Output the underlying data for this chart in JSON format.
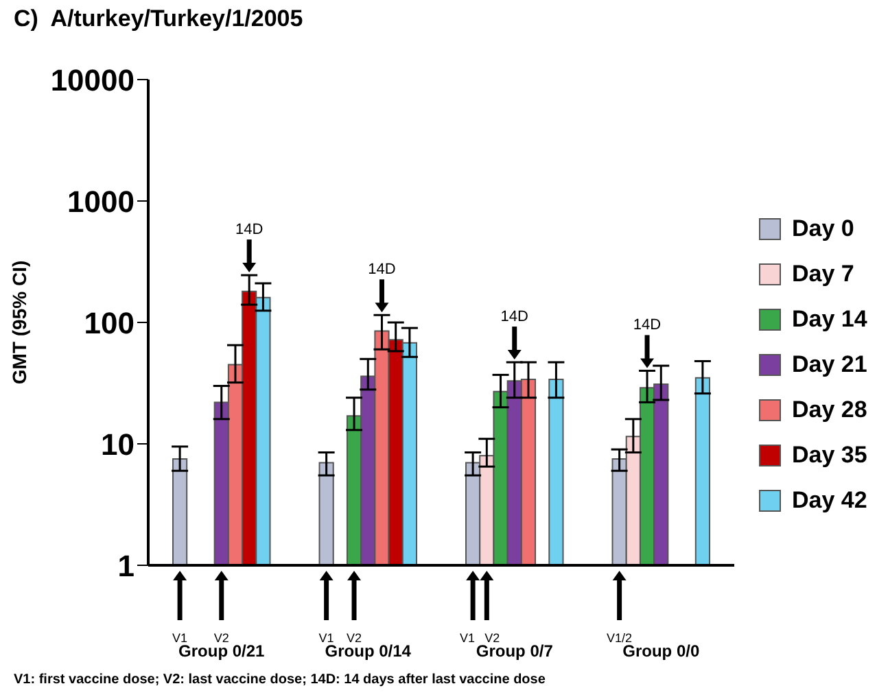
{
  "chart_data": {
    "type": "bar",
    "title": "C)  A/turkey/Turkey/1/2005",
    "ylabel": "GMT (95% CI)",
    "log": "y",
    "ylim": [
      1,
      10000
    ],
    "yticks": [
      1,
      10,
      100,
      1000,
      10000
    ],
    "grid": false,
    "legend": "right",
    "categories": [
      "Group 0/21",
      "Group 0/14",
      "Group 0/7",
      "Group 0/0"
    ],
    "series": [
      {
        "name": "Day 0",
        "color": "#b8bfd4",
        "values": [
          7.5,
          7,
          7,
          7.5
        ],
        "errors": [
          [
            6,
            9.5
          ],
          [
            5.5,
            8.5
          ],
          [
            5.5,
            8.5
          ],
          [
            6,
            9
          ]
        ]
      },
      {
        "name": "Day 7",
        "color": "#f8d4d4",
        "values": [
          null,
          null,
          8,
          11.5
        ],
        "errors": [
          null,
          null,
          [
            6.5,
            11
          ],
          [
            8.5,
            16
          ]
        ]
      },
      {
        "name": "Day 14",
        "color": "#3aa84a",
        "values": [
          null,
          17,
          27,
          29
        ],
        "errors": [
          null,
          [
            13,
            24
          ],
          [
            20,
            37
          ],
          [
            22,
            40
          ]
        ]
      },
      {
        "name": "Day 21",
        "color": "#7b3fa0",
        "values": [
          22,
          36,
          33,
          31
        ],
        "errors": [
          [
            16,
            30
          ],
          [
            28,
            50
          ],
          [
            24,
            47
          ],
          [
            23,
            44
          ]
        ]
      },
      {
        "name": "Day 28",
        "color": "#f07070",
        "values": [
          45,
          85,
          34,
          null
        ],
        "errors": [
          [
            32,
            65
          ],
          [
            60,
            115
          ],
          [
            24,
            47
          ],
          null
        ]
      },
      {
        "name": "Day 35",
        "color": "#c00000",
        "values": [
          180,
          72,
          null,
          null
        ],
        "errors": [
          [
            140,
            245
          ],
          [
            58,
            100
          ],
          null,
          null
        ]
      },
      {
        "name": "Day 42",
        "color": "#6fd0f0",
        "values": [
          160,
          68,
          34,
          35
        ],
        "errors": [
          [
            125,
            210
          ],
          [
            52,
            90
          ],
          [
            24,
            47
          ],
          [
            26,
            48
          ]
        ]
      }
    ],
    "annotations": [
      "14D",
      "14D",
      "14D",
      "14D",
      "V1",
      "V2",
      "V1",
      "V2",
      "V1",
      "V2",
      "V1/2",
      "V1: first vaccine dose; V2: last vaccine dose; 14D: 14 days after last vaccine dose"
    ]
  }
}
